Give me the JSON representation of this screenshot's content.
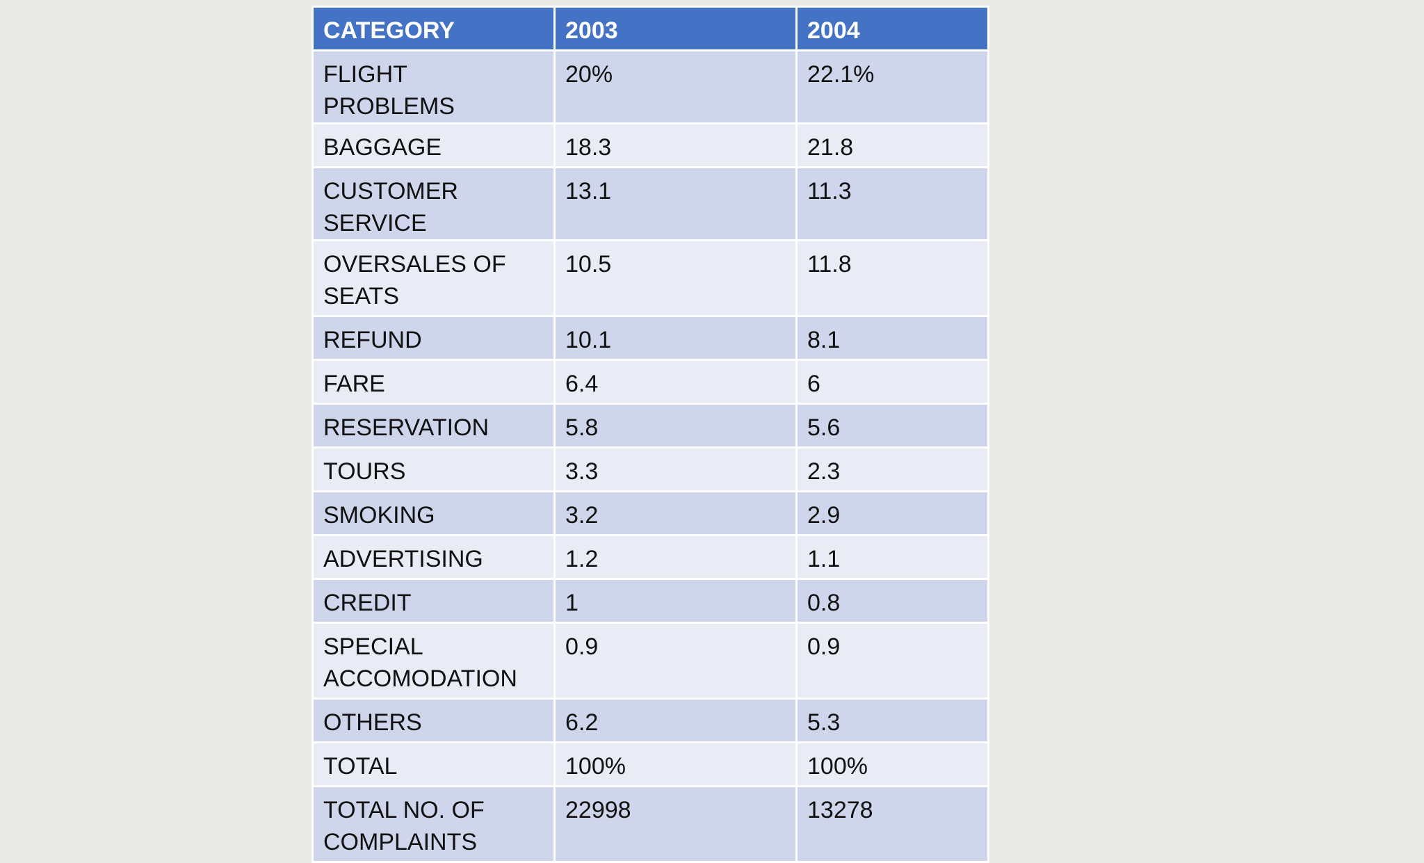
{
  "table": {
    "headers": [
      "CATEGORY",
      "2003",
      "2004"
    ],
    "rows": [
      [
        "FLIGHT PROBLEMS",
        "20%",
        "22.1%"
      ],
      [
        "BAGGAGE",
        "18.3",
        "21.8"
      ],
      [
        "CUSTOMER SERVICE",
        "13.1",
        "11.3"
      ],
      [
        "OVERSALES OF SEATS",
        "10.5",
        "11.8"
      ],
      [
        "REFUND",
        "10.1",
        "8.1"
      ],
      [
        "FARE",
        "6.4",
        "6"
      ],
      [
        "RESERVATION",
        "5.8",
        "5.6"
      ],
      [
        "TOURS",
        "3.3",
        "2.3"
      ],
      [
        "SMOKING",
        "3.2",
        "2.9"
      ],
      [
        "ADVERTISING",
        "1.2",
        "1.1"
      ],
      [
        "CREDIT",
        "1",
        "0.8"
      ],
      [
        "SPECIAL ACCOMODATION",
        "0.9",
        "0.9"
      ],
      [
        "OTHERS",
        "6.2",
        "5.3"
      ],
      [
        "TOTAL",
        "100%",
        "100%"
      ],
      [
        "TOTAL NO. OF COMPLAINTS",
        "22998",
        "13278"
      ]
    ]
  },
  "colors": {
    "header_bg": "#4472c4",
    "row_dark": "#cfd5ea",
    "row_light": "#e9ebf5",
    "background": "#e9e9e8"
  }
}
